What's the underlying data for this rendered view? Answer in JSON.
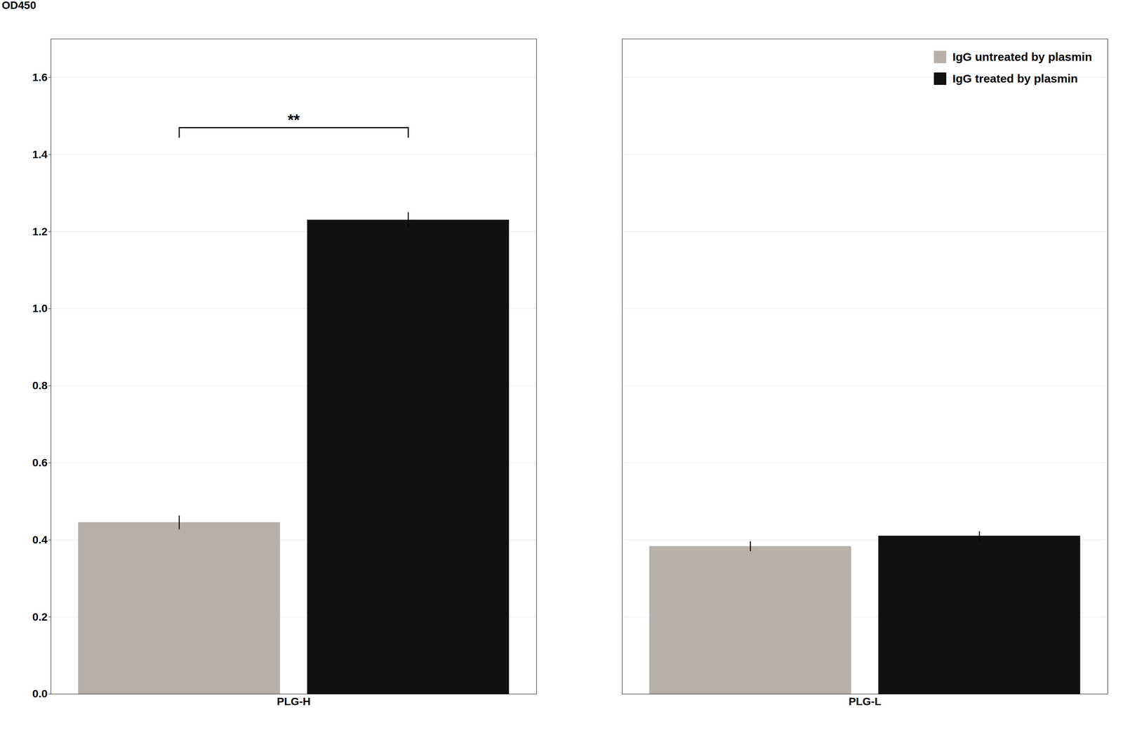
{
  "chart_data": {
    "type": "bar",
    "categories": [
      "PLG-H",
      "PLG-L"
    ],
    "series": [
      {
        "name": "IgG untreated by plasmin",
        "color": "#b8b0a8",
        "values": [
          0.445,
          0.383
        ],
        "errors": [
          0.018,
          0.013
        ]
      },
      {
        "name": "IgG treated by plasmin",
        "color": "#111111",
        "values": [
          1.23,
          0.41
        ],
        "errors": [
          0.02,
          0.012
        ]
      }
    ],
    "ylabel": "OD450",
    "ylim": [
      0.0,
      1.7
    ],
    "yticks": [
      {
        "value": 0.0,
        "label": "0.0"
      },
      0.2,
      0.4,
      0.6,
      0.8,
      {
        "value": 1.0,
        "label": "1.0"
      },
      1.2,
      1.4,
      1.6
    ],
    "annotations": [
      {
        "text": "**",
        "category": "PLG-H",
        "y": 1.47
      }
    ],
    "grid": true,
    "legend": "upper right"
  }
}
